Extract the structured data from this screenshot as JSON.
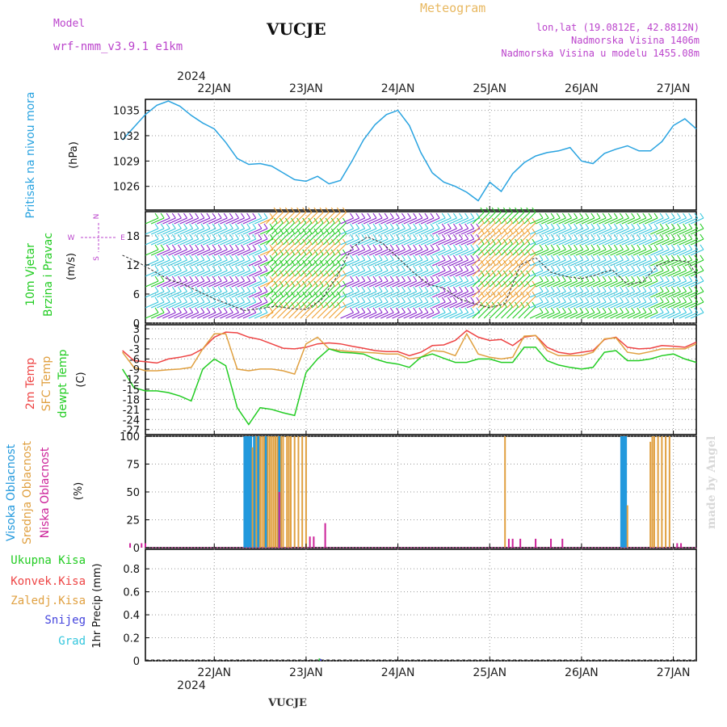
{
  "header": {
    "model_label": "Model",
    "model_name": "wrf-nmm_v3.9.1  e1km",
    "station": "VUCJE",
    "meteogram_label": "Meteogram",
    "lonlat": "lon,lat (19.0812E, 42.8812N)",
    "altitude": "Nadmorska Visina 1406m",
    "model_altitude": "Nadmorska Visina u modelu 1455.08m",
    "footer_station": "VUCJE",
    "watermark": "made by Angel",
    "year": "2024"
  },
  "colors": {
    "pressure": "#29a3e0",
    "wind_green": "#22cc22",
    "wind_cyan": "#33c6dd",
    "wind_orange": "#f0a030",
    "wind_purple": "#8822cc",
    "temp_red": "#ee4444",
    "sfc_orange": "#e0a040",
    "dew_green": "#22cc22",
    "cloud_blue": "#2299dd",
    "cloud_orange": "#e0a040",
    "cloud_magenta": "#cc2299",
    "purple_text": "#bb44cc",
    "meteogram_text": "#e8b860"
  },
  "chart_data": [
    {
      "type": "line",
      "panel": "pressure",
      "labels": [
        "Pritisak na nivou mora",
        "(hPa)"
      ],
      "x_ticks": [
        "22JAN",
        "23JAN",
        "24JAN",
        "25JAN",
        "26JAN",
        "27JAN"
      ],
      "y_ticks": [
        "1026",
        "1029",
        "1032",
        "1035"
      ],
      "ylim": [
        1023.2,
        1036.3
      ],
      "grid": true,
      "series": [
        {
          "name": "Pritisak na nivou mora",
          "x": [
            0,
            3,
            6,
            9,
            12,
            15,
            18,
            21,
            24,
            27,
            30,
            33,
            36,
            39,
            42,
            45,
            48,
            51,
            54,
            57,
            60,
            63,
            66,
            69,
            72,
            75,
            78,
            81,
            84,
            87,
            90,
            93,
            96,
            99,
            102,
            105,
            108,
            111,
            114,
            117,
            120,
            123,
            126,
            129,
            132,
            135,
            138,
            141,
            144,
            147,
            150
          ],
          "y": [
            1031.5,
            1033.0,
            1034.5,
            1035.6,
            1036.1,
            1035.5,
            1034.4,
            1033.5,
            1032.8,
            1031.2,
            1029.3,
            1028.6,
            1028.7,
            1028.4,
            1027.6,
            1026.8,
            1026.6,
            1027.2,
            1026.3,
            1026.7,
            1029.0,
            1031.5,
            1033.3,
            1034.5,
            1035.0,
            1033.2,
            1030.0,
            1027.6,
            1026.5,
            1026.0,
            1025.3,
            1024.3,
            1026.5,
            1025.4,
            1027.5,
            1028.8,
            1029.6,
            1030.0,
            1030.2,
            1030.6,
            1029.0,
            1028.7,
            1029.9,
            1030.4,
            1030.8,
            1030.2,
            1030.2,
            1031.3,
            1033.2,
            1034.0,
            1032.8
          ]
        }
      ]
    },
    {
      "type": "line",
      "panel": "wind",
      "labels": [
        "10m Vjetar",
        "Brzina i Pravac",
        "(m/s)"
      ],
      "compass": {
        "n": "N",
        "s": "S",
        "e": "E",
        "w": "W"
      },
      "y_ticks": [
        "0",
        "6",
        "12",
        "18"
      ],
      "ylim": [
        0,
        23
      ],
      "grid": true,
      "series": [
        {
          "name": "Brzina",
          "x": [
            0,
            4,
            8,
            12,
            16,
            20,
            24,
            28,
            32,
            36,
            40,
            44,
            48,
            52,
            56,
            60,
            64,
            68,
            72,
            76,
            80,
            84,
            88,
            92,
            96,
            100,
            104,
            108,
            112,
            116,
            120,
            124,
            128,
            132,
            136,
            140,
            144,
            148,
            150
          ],
          "y": [
            14.0,
            12.6,
            10.8,
            9.0,
            8.0,
            6.5,
            5.0,
            3.8,
            2.6,
            3.0,
            3.5,
            3.0,
            2.8,
            4.8,
            9.5,
            15.6,
            17.8,
            16.5,
            13.5,
            10.5,
            8.0,
            7.2,
            5.0,
            4.0,
            3.2,
            4.0,
            12.0,
            13.5,
            10.5,
            9.6,
            9.2,
            10.0,
            11.0,
            8.0,
            8.5,
            12.0,
            13.0,
            12.6,
            10.0
          ]
        }
      ]
    },
    {
      "type": "line",
      "panel": "temperature",
      "labels": [
        "2m Temp",
        "SFC Temp",
        "dewpt Temp",
        "(C)"
      ],
      "y_ticks": [
        "3",
        "0",
        "-3",
        "-6",
        "-9",
        "-12",
        "-15",
        "-18",
        "-21",
        "-24",
        "-27"
      ],
      "ylim": [
        -28.5,
        4.2
      ],
      "grid": true,
      "series": [
        {
          "name": "2m Temp",
          "x": [
            0,
            3,
            6,
            9,
            12,
            15,
            18,
            21,
            24,
            27,
            30,
            33,
            36,
            39,
            42,
            45,
            48,
            51,
            54,
            57,
            60,
            63,
            66,
            69,
            72,
            75,
            78,
            81,
            84,
            87,
            90,
            93,
            96,
            99,
            102,
            105,
            108,
            111,
            114,
            117,
            120,
            123,
            126,
            129,
            132,
            135,
            138,
            141,
            144,
            147,
            150
          ],
          "y": [
            -3.5,
            -6.5,
            -6.8,
            -7.2,
            -6.0,
            -5.5,
            -4.8,
            -3.0,
            0.5,
            2.0,
            1.8,
            0.5,
            -0.2,
            -1.5,
            -2.8,
            -3.0,
            -2.5,
            -1.5,
            -1.2,
            -1.5,
            -2.2,
            -2.8,
            -3.5,
            -3.8,
            -3.8,
            -5.0,
            -4.0,
            -2.0,
            -1.8,
            -0.5,
            2.5,
            0.5,
            -0.5,
            -0.2,
            -2.0,
            0.5,
            1.0,
            -2.5,
            -4.0,
            -4.5,
            -4.0,
            -3.5,
            -0.2,
            0.5,
            -2.5,
            -3.0,
            -2.8,
            -2.0,
            -2.2,
            -2.5,
            -1.0
          ]
        },
        {
          "name": "SFC Temp",
          "x": [
            0,
            3,
            6,
            9,
            12,
            15,
            18,
            21,
            24,
            27,
            30,
            33,
            36,
            39,
            42,
            45,
            48,
            51,
            54,
            57,
            60,
            63,
            66,
            69,
            72,
            75,
            78,
            81,
            84,
            87,
            90,
            93,
            96,
            99,
            102,
            105,
            108,
            111,
            114,
            117,
            120,
            123,
            126,
            129,
            132,
            135,
            138,
            141,
            144,
            147,
            150
          ],
          "y": [
            -4.0,
            -8.5,
            -9.5,
            -9.5,
            -9.2,
            -9.0,
            -8.5,
            -3.0,
            1.5,
            1.5,
            -9.0,
            -9.5,
            -9.0,
            -9.0,
            -9.5,
            -10.5,
            -1.5,
            0.5,
            -3.0,
            -3.5,
            -3.8,
            -4.0,
            -4.2,
            -4.5,
            -4.5,
            -6.0,
            -5.5,
            -3.5,
            -3.8,
            -5.0,
            1.5,
            -4.5,
            -5.5,
            -6.0,
            -5.5,
            0.8,
            1.0,
            -3.5,
            -5.0,
            -5.0,
            -5.0,
            -4.0,
            0.0,
            0.3,
            -4.0,
            -4.5,
            -3.8,
            -3.0,
            -3.0,
            -3.0,
            -1.5
          ]
        },
        {
          "name": "dewpt Temp",
          "x": [
            0,
            3,
            6,
            9,
            12,
            15,
            18,
            21,
            24,
            27,
            30,
            33,
            36,
            39,
            42,
            45,
            48,
            51,
            54,
            57,
            60,
            63,
            66,
            69,
            72,
            75,
            78,
            81,
            84,
            87,
            90,
            93,
            96,
            99,
            102,
            105,
            108,
            111,
            114,
            117,
            120,
            123,
            126,
            129,
            132,
            135,
            138,
            141,
            144,
            147,
            150
          ],
          "y": [
            -9.0,
            -14.5,
            -15.5,
            -15.5,
            -16.0,
            -17.0,
            -18.5,
            -9.0,
            -6.0,
            -8.0,
            -20.5,
            -25.5,
            -20.5,
            -21.0,
            -22.0,
            -22.8,
            -10.0,
            -6.0,
            -3.0,
            -4.0,
            -4.2,
            -4.5,
            -6.0,
            -7.0,
            -7.5,
            -8.5,
            -5.5,
            -4.5,
            -5.8,
            -7.0,
            -7.0,
            -6.0,
            -6.0,
            -7.0,
            -7.0,
            -2.5,
            -2.5,
            -6.5,
            -7.8,
            -8.5,
            -9.0,
            -8.5,
            -4.0,
            -3.5,
            -6.5,
            -6.5,
            -6.0,
            -5.0,
            -4.5,
            -6.0,
            -7.0
          ]
        }
      ]
    },
    {
      "type": "bar",
      "panel": "clouds",
      "labels": [
        "Visoka Oblacnost",
        "Srednja Oblacnost",
        "Niska Oblacnost",
        "(%)"
      ],
      "y_ticks": [
        "0",
        "25",
        "50",
        "75",
        "100"
      ],
      "ylim": [
        0,
        100
      ],
      "grid": true,
      "series": [
        {
          "name": "Visoka Oblacnost",
          "x": [
            32,
            32.5,
            33,
            33.5,
            34.5,
            35.5,
            37.5,
            41,
            130.5,
            131,
            131.5
          ],
          "y": [
            100,
            100,
            100,
            100,
            100,
            100,
            100,
            100,
            100,
            100,
            100
          ]
        },
        {
          "name": "Srednja Oblacnost",
          "x": [
            34,
            35,
            36,
            36.5,
            37,
            38,
            38.5,
            39,
            39.5,
            40,
            40.5,
            41.5,
            42,
            43,
            43.5,
            44,
            45,
            46,
            47,
            48,
            100,
            132,
            138,
            138.5,
            139,
            140,
            141,
            142,
            143
          ],
          "y": [
            90,
            100,
            100,
            100,
            100,
            100,
            100,
            100,
            100,
            100,
            100,
            100,
            100,
            100,
            100,
            100,
            100,
            100,
            100,
            100,
            100,
            38,
            95,
            100,
            100,
            100,
            100,
            100,
            100
          ]
        },
        {
          "name": "Niska Oblacnost",
          "x": [
            2,
            5,
            6,
            41,
            49,
            50,
            53,
            101,
            102,
            104,
            108,
            112,
            115,
            145,
            146
          ],
          "y": [
            4,
            4,
            4,
            50,
            10,
            10,
            22,
            8,
            8,
            8,
            8,
            8,
            8,
            4,
            4
          ]
        }
      ]
    },
    {
      "type": "bar",
      "panel": "precipitation",
      "labels": [
        "Ukupna Kisa",
        "Konvek.Kisa",
        "Zaledj.Kisa",
        "Snijeg",
        "Grad",
        "1hr Precip (mm)"
      ],
      "x_ticks": [
        "22JAN",
        "23JAN",
        "24JAN",
        "25JAN",
        "26JAN",
        "27JAN"
      ],
      "y_ticks": [
        "0",
        "0.2",
        "0.4",
        "0.6",
        "0.8"
      ],
      "ylim": [
        0,
        0.97
      ],
      "grid": true,
      "series": [
        {
          "name": "Ukupna Kisa",
          "x": [
            51.5
          ],
          "y": [
            0.02
          ]
        },
        {
          "name": "Snijeg",
          "x": [
            51.8
          ],
          "y": [
            0.015
          ]
        }
      ]
    }
  ]
}
